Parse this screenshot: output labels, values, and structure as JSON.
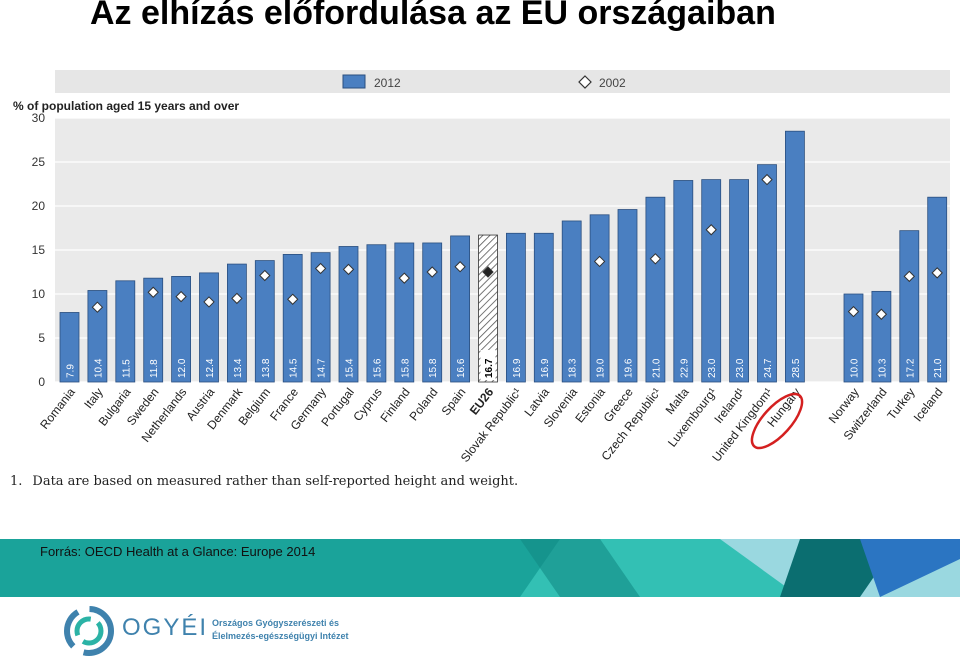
{
  "slide": {
    "title": "Az elhízás előfordulása az EU országaiban",
    "source": "Forrás: OECD Health at a Glance: Europe 2014",
    "footnote_number": "1.",
    "footnote": "Data are based on measured rather than self-reported height and weight.",
    "logo_text": "OGYÉI",
    "org_line1": "Országos Gyógyszerészeti és",
    "org_line2": "Élelmezés-egészségügyi Intézet"
  },
  "colors": {
    "bar": "#4a7fc1",
    "bar_edge": "#2b4f7f",
    "eu_hatch": "#555555",
    "legend_band": "#e6e6e6",
    "highlight_circle": "#d42020",
    "teal": "#1aa39a",
    "teal_dark": "#0b6e70",
    "blue_accent": "#2b75c2"
  },
  "chart_data": {
    "type": "bar",
    "ylabel": "% of population aged 15 years and over",
    "ylim": [
      0,
      30
    ],
    "yticks": [
      0,
      5,
      10,
      15,
      20,
      25,
      30
    ],
    "legend_position": "top",
    "legend": [
      "2012",
      "2002"
    ],
    "highlighted_category": "Hungary",
    "categories": [
      "Romania",
      "Italy",
      "Bulgaria",
      "Sweden",
      "Netherlands",
      "Austria",
      "Denmark",
      "Belgium",
      "France",
      "Germany",
      "Portugal",
      "Cyprus",
      "Finland",
      "Poland",
      "Spain",
      "EU26",
      "Slovak Republic¹",
      "Latvia",
      "Slovenia",
      "Estonia",
      "Greece",
      "Czech Republic¹",
      "Malta",
      "Luxembourg¹",
      "Ireland¹",
      "United Kingdom¹",
      "Hungary",
      "Norway",
      "Switzerland",
      "Turkey",
      "Iceland"
    ],
    "series": [
      {
        "name": "2012",
        "values": [
          7.9,
          10.4,
          11.5,
          11.8,
          12.0,
          12.4,
          13.4,
          13.8,
          14.5,
          14.7,
          15.4,
          15.6,
          15.8,
          15.8,
          16.6,
          16.7,
          16.9,
          16.9,
          18.3,
          19.0,
          19.6,
          21.0,
          22.9,
          23.0,
          23.0,
          24.7,
          28.5,
          10.0,
          10.3,
          17.2,
          21.0
        ]
      },
      {
        "name": "2002",
        "values": [
          null,
          8.5,
          null,
          10.2,
          9.7,
          9.1,
          9.5,
          12.1,
          9.4,
          12.9,
          12.8,
          null,
          11.8,
          12.5,
          13.1,
          12.5,
          null,
          null,
          null,
          13.7,
          null,
          14.0,
          null,
          17.3,
          null,
          23.0,
          null,
          8.0,
          7.7,
          12.0,
          12.4
        ]
      }
    ]
  }
}
